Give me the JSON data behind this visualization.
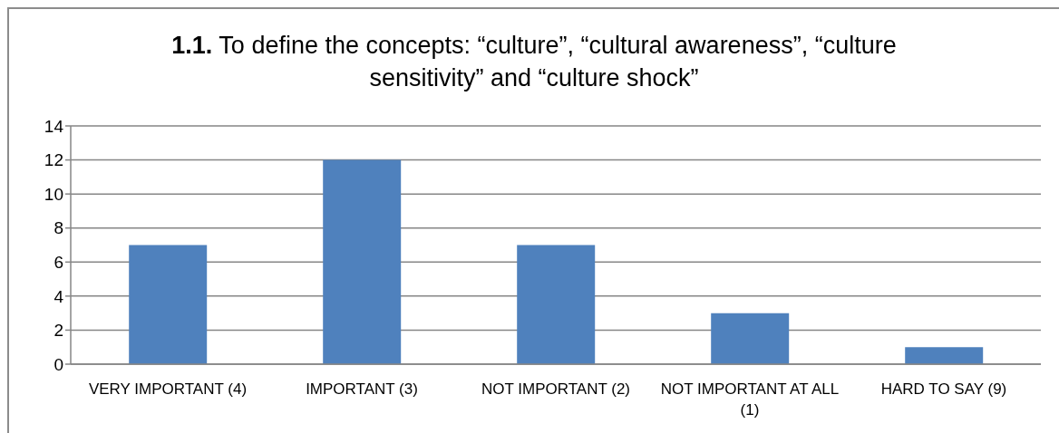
{
  "chart_data": {
    "type": "bar",
    "title": "1.1. To define the concepts: “culture”, “cultural awareness”, “culture sensitivity” and “culture shock”",
    "categories": [
      "VERY IMPORTANT (4)",
      "IMPORTANT (3)",
      "NOT IMPORTANT (2)",
      "NOT IMPORTANT AT ALL (1)",
      "HARD TO SAY (9)"
    ],
    "values": [
      7,
      12,
      7,
      3,
      1
    ],
    "color": "#4f81bd",
    "ylim": [
      0,
      14
    ],
    "yticks": [
      0,
      2,
      4,
      6,
      8,
      10,
      12,
      14
    ],
    "grid": "y"
  }
}
